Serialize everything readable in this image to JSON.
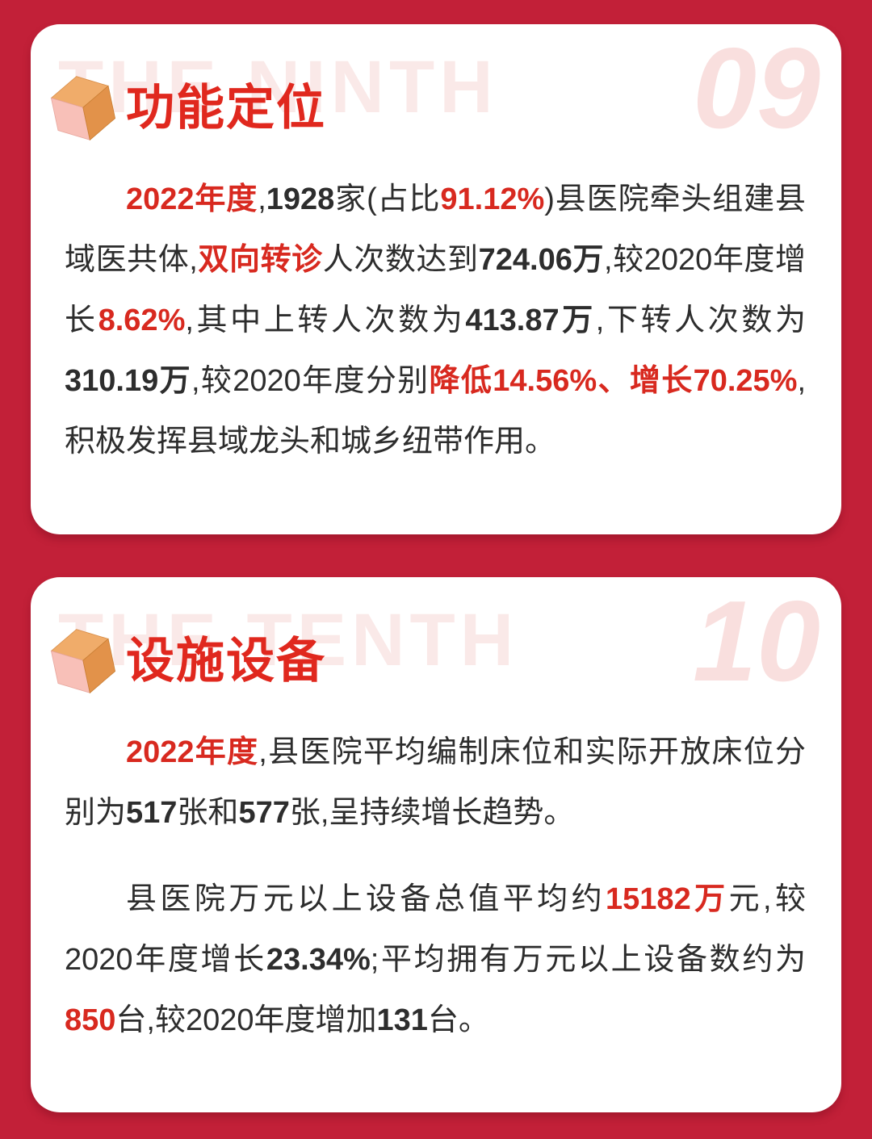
{
  "colors": {
    "background": "#C22038",
    "card": "#FFFFFF",
    "title_red": "#E0281E",
    "accent_red": "#D8291F",
    "watermark_pink": "#FAE9E8",
    "number_pink": "#F9DFDE",
    "text_dark": "#2D2D2D",
    "cube_top": "#F0AC6A",
    "cube_left": "#F8C0B8",
    "cube_right": "#E2924A"
  },
  "sections": [
    {
      "number": "09",
      "watermark": "THE NINTH",
      "title": "功能定位",
      "icon": "cube-icon",
      "paragraphs": [
        [
          {
            "t": "2022年度",
            "s": "r"
          },
          {
            "t": ",",
            "s": "n"
          },
          {
            "t": "1928",
            "s": "b"
          },
          {
            "t": "家(占比",
            "s": "n"
          },
          {
            "t": "91.12%",
            "s": "r"
          },
          {
            "t": ")县医院牵头组建县域医共体,",
            "s": "n"
          },
          {
            "t": "双向转诊",
            "s": "r"
          },
          {
            "t": "人次数达到",
            "s": "n"
          },
          {
            "t": "724.06万",
            "s": "b"
          },
          {
            "t": ",较2020年度增长",
            "s": "n"
          },
          {
            "t": "8.62%",
            "s": "r"
          },
          {
            "t": ",其中上转人次数为",
            "s": "n"
          },
          {
            "t": "413.87万",
            "s": "b"
          },
          {
            "t": ",下转人次数为",
            "s": "n"
          },
          {
            "t": "310.19万",
            "s": "b"
          },
          {
            "t": ",较2020年度分别",
            "s": "n"
          },
          {
            "t": "降低14.56%、增长70.25%",
            "s": "r"
          },
          {
            "t": ",积极发挥县域龙头和城乡纽带作用。",
            "s": "n"
          }
        ]
      ]
    },
    {
      "number": "10",
      "watermark": "THE TENTH",
      "title": "设施设备",
      "icon": "cube-icon",
      "paragraphs": [
        [
          {
            "t": "2022年度",
            "s": "r"
          },
          {
            "t": ",县医院平均编制床位和实际开放床位分别为",
            "s": "n"
          },
          {
            "t": "517",
            "s": "b"
          },
          {
            "t": "张和",
            "s": "n"
          },
          {
            "t": "577",
            "s": "b"
          },
          {
            "t": "张,呈持续增长趋势。",
            "s": "n"
          }
        ],
        [
          {
            "t": "县医院万元以上设备总值平均约",
            "s": "n"
          },
          {
            "t": "15182万",
            "s": "r"
          },
          {
            "t": "元,较2020年度增长",
            "s": "n"
          },
          {
            "t": "23.34%",
            "s": "b"
          },
          {
            "t": ";平均拥有万元以上设备数约为",
            "s": "n"
          },
          {
            "t": "850",
            "s": "r"
          },
          {
            "t": "台,较2020年度增加",
            "s": "n"
          },
          {
            "t": "131",
            "s": "b"
          },
          {
            "t": "台。",
            "s": "n"
          }
        ]
      ]
    }
  ]
}
